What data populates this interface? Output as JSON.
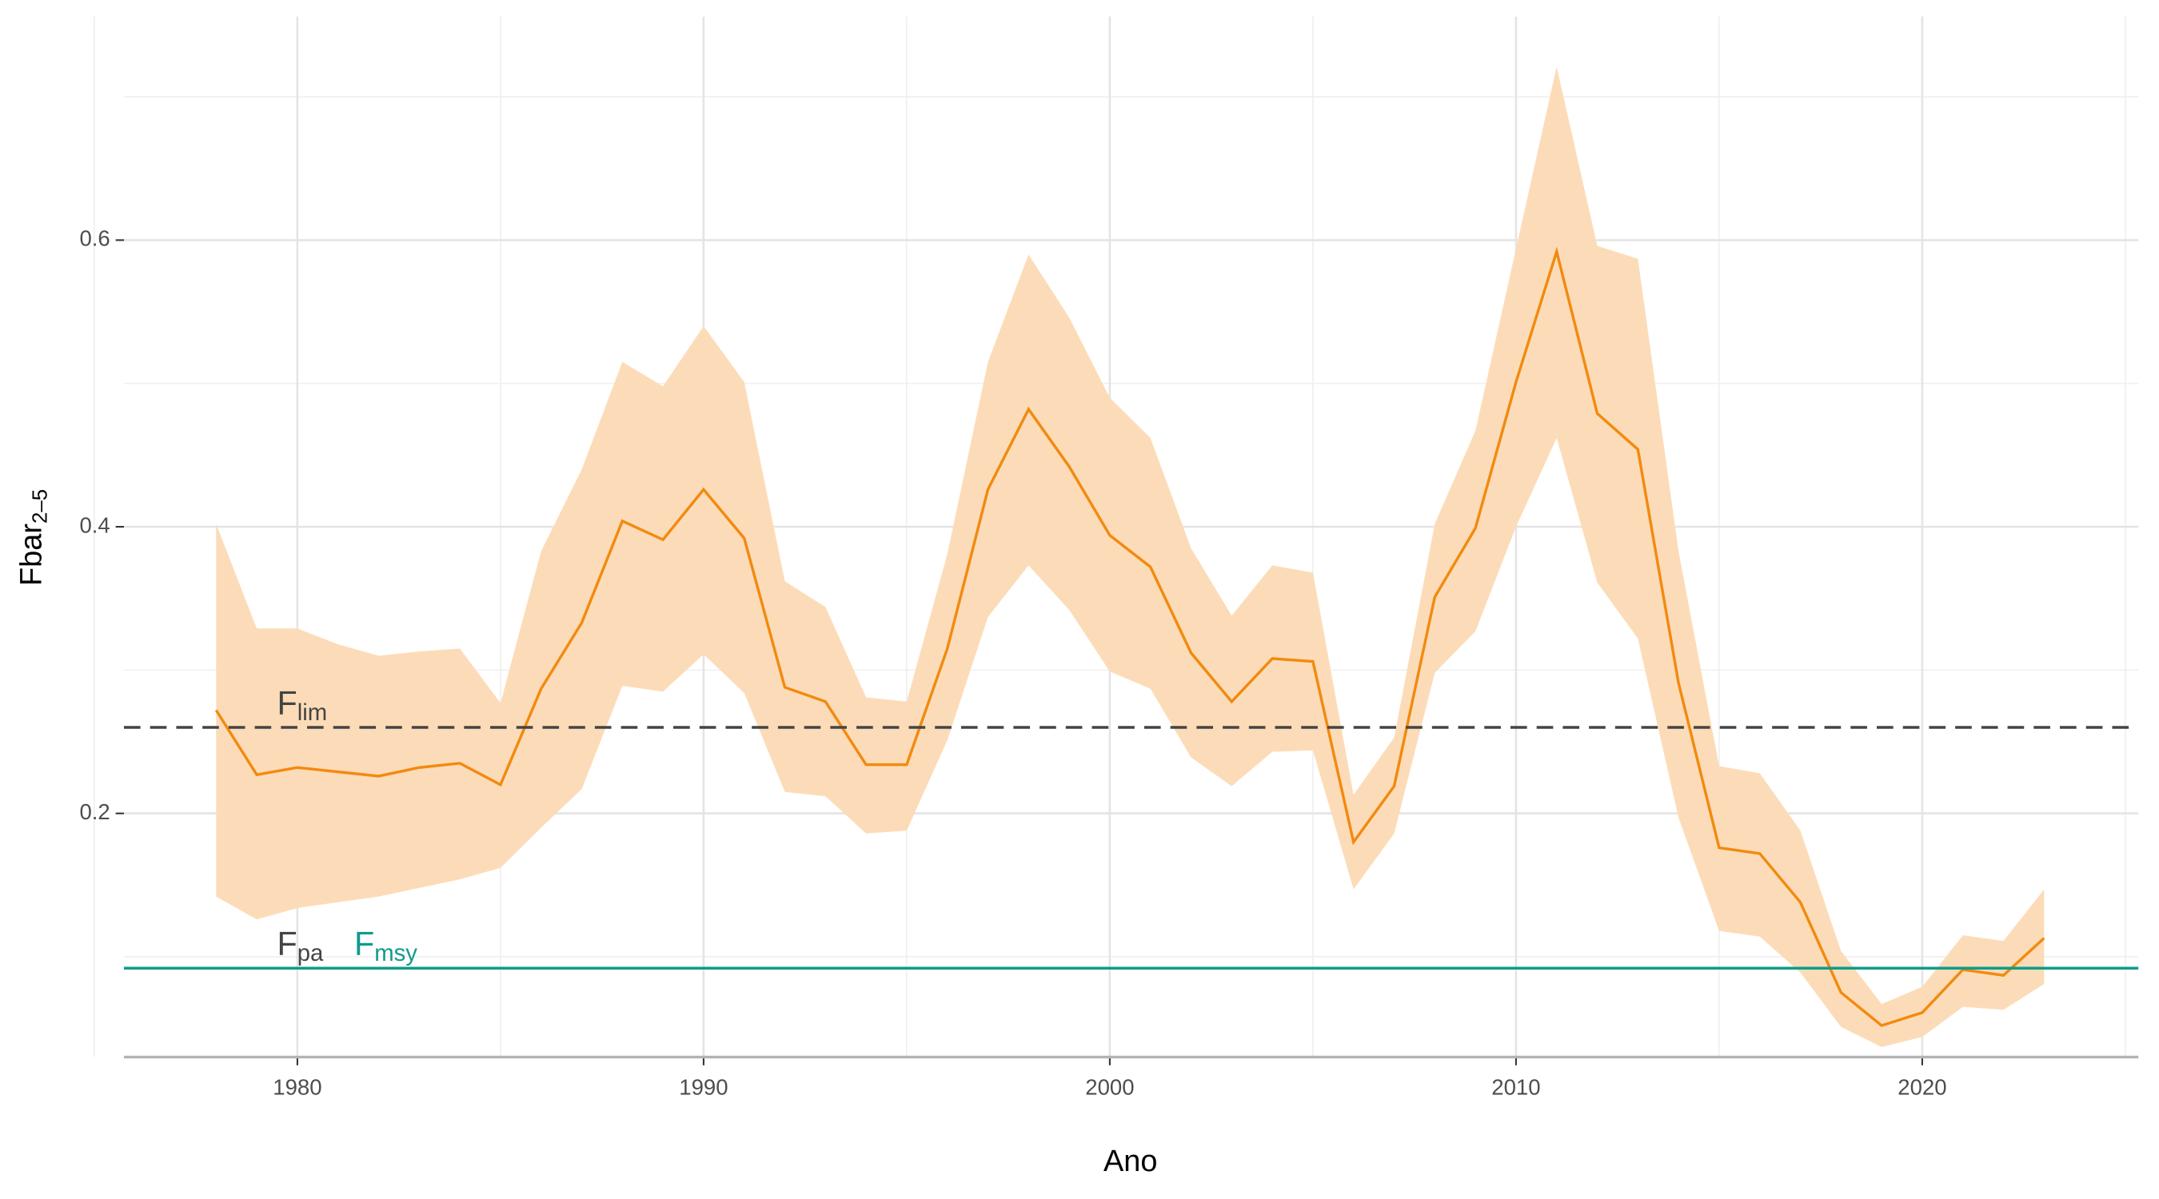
{
  "chart_data": {
    "type": "line",
    "x_label": "Ano",
    "y_label": {
      "main": "Fbar",
      "subscript": "2–5"
    },
    "x": [
      1978,
      1979,
      1980,
      1981,
      1982,
      1983,
      1984,
      1985,
      1986,
      1987,
      1988,
      1989,
      1990,
      1991,
      1992,
      1993,
      1994,
      1995,
      1996,
      1997,
      1998,
      1999,
      2000,
      2001,
      2002,
      2003,
      2004,
      2005,
      2006,
      2007,
      2008,
      2009,
      2010,
      2011,
      2012,
      2013,
      2014,
      2015,
      2016,
      2017,
      2018,
      2019,
      2020,
      2021,
      2022,
      2023
    ],
    "series": [
      {
        "name": "Fbar",
        "color": "#f28a0f",
        "band_color": "#fcdcb8",
        "values": [
          0.272,
          0.227,
          0.232,
          0.229,
          0.226,
          0.232,
          0.235,
          0.22,
          0.287,
          0.333,
          0.404,
          0.391,
          0.426,
          0.392,
          0.288,
          0.278,
          0.234,
          0.234,
          0.315,
          0.426,
          0.482,
          0.442,
          0.394,
          0.372,
          0.312,
          0.278,
          0.308,
          0.306,
          0.18,
          0.219,
          0.351,
          0.399,
          0.501,
          0.592,
          0.479,
          0.454,
          0.291,
          0.176,
          0.172,
          0.138,
          0.075,
          0.052,
          0.061,
          0.091,
          0.087,
          0.113
        ],
        "upper": [
          0.402,
          0.329,
          0.329,
          0.318,
          0.31,
          0.313,
          0.315,
          0.277,
          0.383,
          0.44,
          0.515,
          0.498,
          0.54,
          0.501,
          0.362,
          0.344,
          0.281,
          0.278,
          0.381,
          0.515,
          0.59,
          0.546,
          0.49,
          0.462,
          0.385,
          0.338,
          0.373,
          0.368,
          0.213,
          0.253,
          0.402,
          0.467,
          0.594,
          0.721,
          0.596,
          0.587,
          0.383,
          0.233,
          0.228,
          0.188,
          0.104,
          0.067,
          0.079,
          0.115,
          0.111,
          0.147
        ],
        "lower": [
          0.142,
          0.126,
          0.134,
          0.138,
          0.142,
          0.148,
          0.154,
          0.162,
          0.19,
          0.217,
          0.289,
          0.285,
          0.311,
          0.284,
          0.215,
          0.212,
          0.186,
          0.188,
          0.251,
          0.337,
          0.373,
          0.342,
          0.299,
          0.287,
          0.239,
          0.219,
          0.243,
          0.244,
          0.147,
          0.186,
          0.298,
          0.327,
          0.4,
          0.462,
          0.361,
          0.322,
          0.197,
          0.118,
          0.114,
          0.089,
          0.051,
          0.037,
          0.044,
          0.065,
          0.063,
          0.081
        ]
      }
    ],
    "references": [
      {
        "symbol": "F",
        "subscript": "lim",
        "value": 0.26,
        "color": "#444444",
        "dashed": true
      },
      {
        "symbol": "F",
        "subscript": "pa",
        "value": 0.092,
        "color": "#444444",
        "dashed": true
      },
      {
        "symbol": "F",
        "subscript": "msy",
        "value": 0.092,
        "color": "#109b8a",
        "dashed": false
      }
    ],
    "xlim": [
      1975.73,
      2025.32
    ],
    "xticks": [
      1980,
      1990,
      2000,
      2010,
      2020
    ],
    "xminor": [
      1975,
      1985,
      1995,
      2005,
      2015,
      2025
    ],
    "ylim": [
      0.03,
      0.756
    ],
    "yticks": [
      0.2,
      0.4,
      0.6
    ],
    "yminor": [
      0.1,
      0.3,
      0.5,
      0.7
    ],
    "grid": true
  }
}
